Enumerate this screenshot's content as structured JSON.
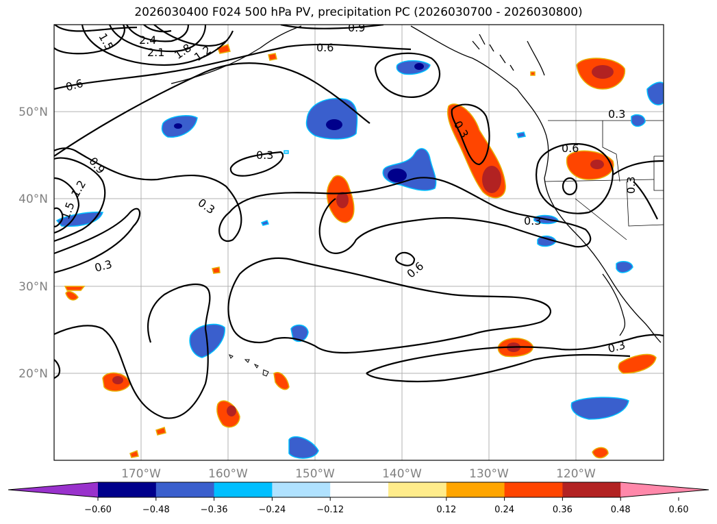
{
  "title": "2026030400 F024 500 hPa PV, precipitation PC (2026030700 - 2026030800)",
  "chart_data": {
    "type": "contour-map",
    "fields": [
      "500 hPa PV",
      "precipitation PC"
    ],
    "lon_range": [
      -180,
      -110
    ],
    "lat_range": [
      10,
      60
    ],
    "grid": true,
    "lon_ticks": [
      "170°W",
      "160°W",
      "150°W",
      "140°W",
      "130°W",
      "120°W"
    ],
    "lat_ticks": [
      "50°N",
      "40°N",
      "30°N",
      "20°N"
    ],
    "pv_contour_labels": [
      "0.9",
      "1.5",
      "2.4",
      "2.1",
      "1.8",
      "1.2",
      "0.6",
      "0.6",
      "0.3",
      "0.9",
      "1.2",
      "1.5",
      "0.3",
      "0.3",
      "0.6",
      "0.3",
      "0.3",
      "0.6",
      "0.3",
      "0.3",
      "0.3"
    ],
    "colorbar": {
      "ticks": [
        "−0.60",
        "−0.48",
        "−0.36",
        "−0.24",
        "−0.12",
        "0.12",
        "0.24",
        "0.36",
        "0.48",
        "0.60"
      ],
      "colors": [
        "#9932cc",
        "#00008b",
        "#3a5fcd",
        "#00bfff",
        "#b0e2ff",
        "#ffffff",
        "#ffec8b",
        "#ffa500",
        "#ff4500",
        "#b22222",
        "#ff88aa"
      ],
      "extend": "both"
    },
    "positive_color": "#ff4500",
    "positive_core_color": "#b22222",
    "negative_color": "#3a5fcd",
    "negative_core_color": "#00008b"
  }
}
